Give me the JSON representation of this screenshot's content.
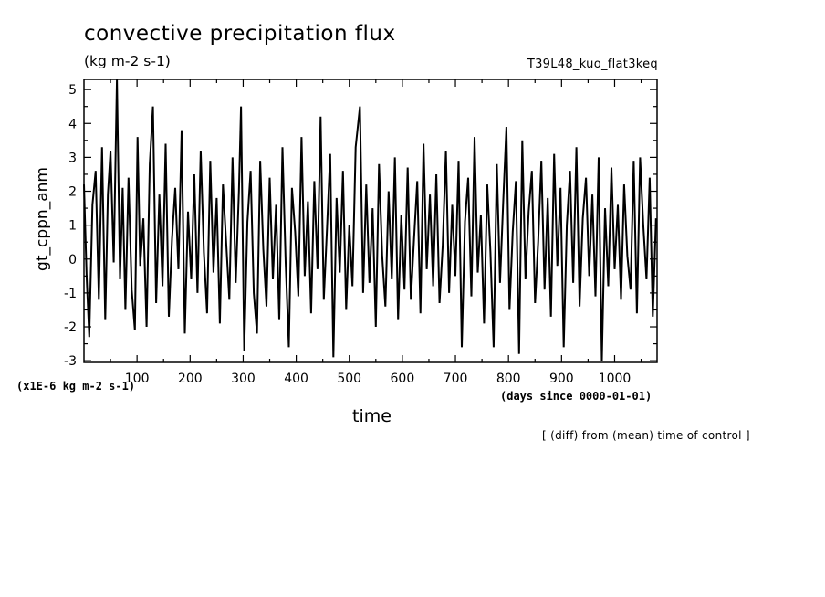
{
  "chart_data": {
    "type": "line",
    "title": "convective precipitation flux",
    "units": "(kg m-2 s-1)",
    "run_label": "T39L48_kuo_flat3keq",
    "xlabel": "time",
    "x_unit_label": "(days since 0000-01-01)",
    "ylabel": "gt_cppn_anm",
    "y_scale_label": "(x1E-6 kg m-2 s-1)",
    "note": "[ (diff) from (mean) time of control ]",
    "xlim": [
      0,
      1080
    ],
    "ylim": [
      -3.05,
      5.3
    ],
    "x_ticks": [
      "100",
      "200",
      "300",
      "400",
      "500",
      "600",
      "700",
      "800",
      "900",
      "1000"
    ],
    "y_ticks": [
      "-3",
      "-2",
      "-1",
      "0",
      "1",
      "2",
      "3",
      "4",
      "5"
    ],
    "grid": false,
    "line_color": "#000000",
    "series": [
      {
        "x": [
          0,
          5,
          10,
          16,
          22,
          28,
          34,
          40,
          45,
          50,
          56,
          62,
          68,
          73,
          78,
          84,
          90,
          96,
          101,
          106,
          112,
          118,
          124,
          130,
          136,
          142,
          148,
          154,
          160,
          166,
          172,
          178,
          184,
          190,
          196,
          202,
          208,
          214,
          220,
          226,
          232,
          238,
          244,
          250,
          256,
          262,
          268,
          274,
          280,
          286,
          292,
          296,
          302,
          308,
          314,
          320,
          326,
          332,
          338,
          344,
          350,
          356,
          362,
          368,
          374,
          380,
          386,
          392,
          398,
          404,
          410,
          416,
          422,
          428,
          434,
          440,
          446,
          452,
          458,
          464,
          470,
          476,
          482,
          488,
          494,
          500,
          506,
          512,
          520,
          526,
          532,
          538,
          544,
          550,
          556,
          562,
          568,
          574,
          580,
          586,
          592,
          598,
          604,
          610,
          616,
          622,
          628,
          634,
          640,
          646,
          652,
          658,
          664,
          670,
          676,
          682,
          688,
          694,
          700,
          706,
          712,
          718,
          724,
          730,
          736,
          742,
          748,
          754,
          760,
          766,
          772,
          778,
          784,
          790,
          796,
          802,
          808,
          814,
          820,
          826,
          832,
          838,
          844,
          850,
          856,
          862,
          868,
          874,
          880,
          886,
          892,
          898,
          904,
          910,
          916,
          922,
          928,
          934,
          940,
          946,
          952,
          958,
          964,
          970,
          976,
          982,
          988,
          994,
          1000,
          1006,
          1012,
          1018,
          1024,
          1030,
          1036,
          1042,
          1048,
          1054,
          1060,
          1066,
          1072,
          1078
        ],
        "y": [
          2.2,
          -0.5,
          -2.3,
          1.6,
          2.6,
          -1.2,
          3.3,
          -1.8,
          1.9,
          3.2,
          -0.1,
          5.3,
          -0.6,
          2.1,
          -1.5,
          2.4,
          -0.9,
          -2.1,
          3.6,
          -0.2,
          1.2,
          -2.0,
          2.8,
          4.5,
          -1.3,
          1.9,
          -0.8,
          3.4,
          -1.7,
          0.6,
          2.1,
          -0.3,
          3.8,
          -2.2,
          1.4,
          -0.6,
          2.5,
          -1.0,
          3.2,
          0.2,
          -1.6,
          2.9,
          -0.4,
          1.8,
          -1.9,
          2.2,
          0.5,
          -1.2,
          3.0,
          -0.7,
          2.0,
          4.5,
          -2.7,
          1.1,
          2.6,
          -1.0,
          -2.2,
          2.9,
          0.3,
          -1.4,
          2.4,
          -0.6,
          1.6,
          -1.8,
          3.3,
          -0.1,
          -2.6,
          2.1,
          0.8,
          -1.1,
          3.6,
          -0.5,
          1.7,
          -1.6,
          2.3,
          -0.3,
          4.2,
          -1.2,
          0.9,
          3.1,
          -2.9,
          1.8,
          -0.4,
          2.6,
          -1.5,
          1.0,
          -0.8,
          3.3,
          4.5,
          -1.0,
          2.2,
          -0.7,
          1.5,
          -2.0,
          2.8,
          0.1,
          -1.4,
          2.0,
          -0.6,
          3.0,
          -1.8,
          1.3,
          -0.9,
          2.7,
          -1.2,
          0.6,
          2.3,
          -1.6,
          3.4,
          -0.3,
          1.9,
          -0.8,
          2.5,
          -1.3,
          0.4,
          3.2,
          -1.0,
          1.6,
          -0.5,
          2.9,
          -2.6,
          1.1,
          2.4,
          -1.1,
          3.6,
          -0.4,
          1.3,
          -1.9,
          2.2,
          0.2,
          -2.6,
          2.8,
          -0.7,
          1.7,
          3.9,
          -1.5,
          0.8,
          2.3,
          -2.8,
          3.5,
          -0.6,
          1.4,
          2.6,
          -1.3,
          0.5,
          2.9,
          -0.9,
          1.8,
          -1.7,
          3.1,
          -0.2,
          2.1,
          -2.6,
          1.0,
          2.6,
          -0.7,
          3.3,
          -1.4,
          1.2,
          2.4,
          -0.5,
          1.9,
          -1.1,
          3.0,
          -3.0,
          1.5,
          -0.8,
          2.7,
          -0.3,
          1.6,
          -1.2,
          2.2,
          0.1,
          -0.9,
          2.9,
          -1.6,
          3.0,
          1.0,
          -0.6,
          2.4,
          -1.7,
          1.2
        ]
      }
    ]
  }
}
